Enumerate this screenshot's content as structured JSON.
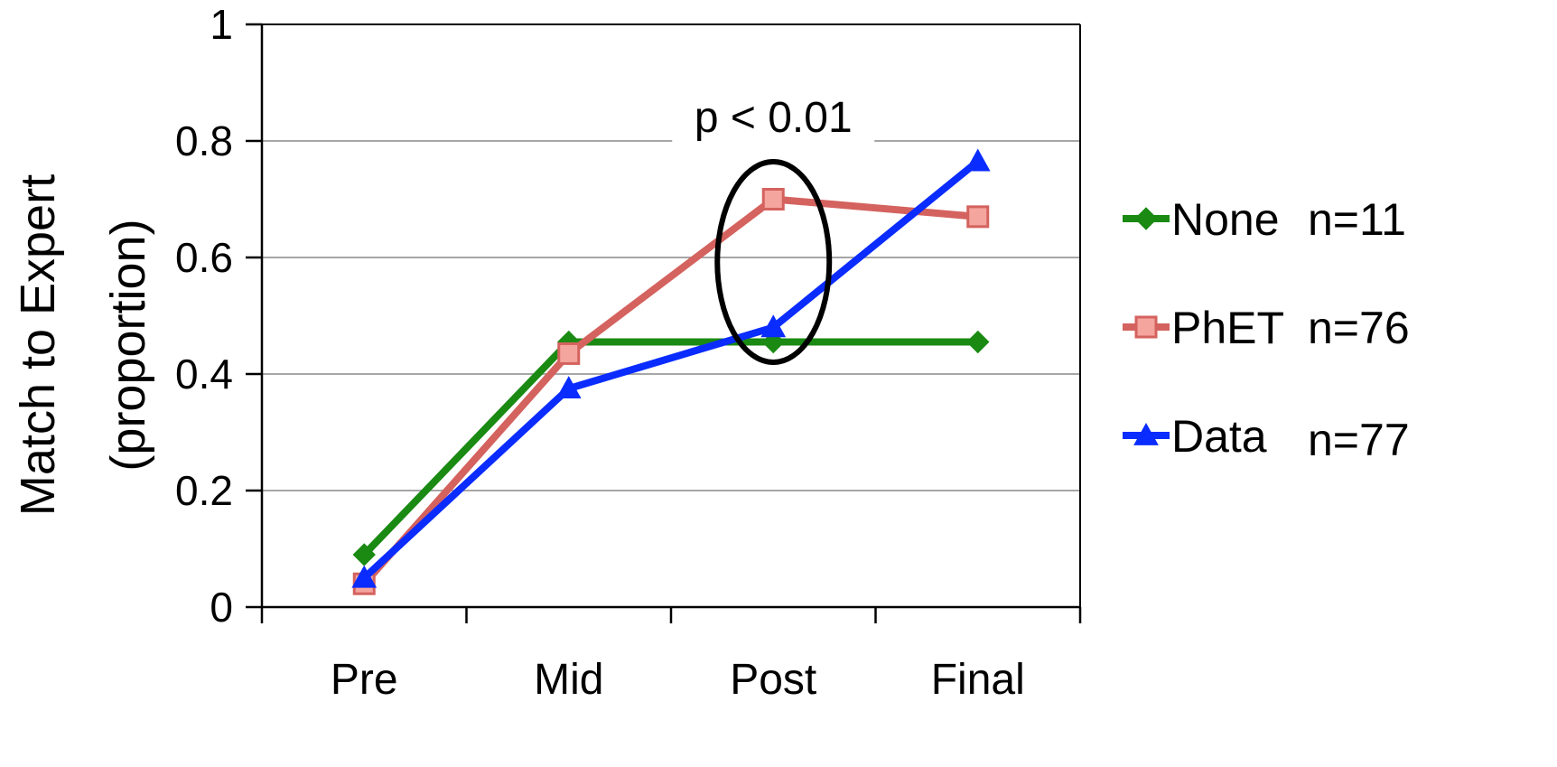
{
  "chart_data": {
    "type": "line",
    "ylabel_line1": "Match to Expert",
    "ylabel_line2": "(proportion)",
    "categories": [
      "Pre",
      "Mid",
      "Post",
      "Final"
    ],
    "ylim": [
      0,
      1
    ],
    "yticks": [
      "0",
      "0.2",
      "0.4",
      "0.6",
      "0.8",
      "1"
    ],
    "ytick_values": [
      0,
      0.2,
      0.4,
      0.6,
      0.8,
      1
    ],
    "grid": true,
    "legend_position": "right",
    "series": [
      {
        "name": "None",
        "n": "n=11",
        "color": "#1a8a12",
        "marker": "diamond",
        "values": [
          0.09,
          0.455,
          0.455,
          0.455
        ]
      },
      {
        "name": "PhET",
        "n": "n=76",
        "color": "#d4625e",
        "marker": "square",
        "values": [
          0.04,
          0.435,
          0.7,
          0.67
        ]
      },
      {
        "name": "Data",
        "n": "n=77",
        "color": "#0a2cff",
        "marker": "triangle",
        "values": [
          0.05,
          0.375,
          0.48,
          0.765
        ]
      }
    ],
    "annotation": {
      "text": "p < 0.01",
      "category": "Post"
    }
  }
}
